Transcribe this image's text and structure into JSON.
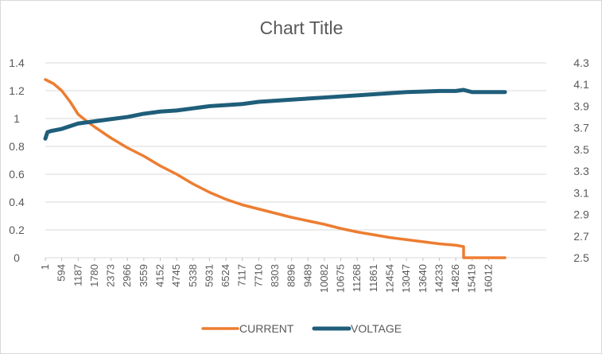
{
  "chart_data": {
    "type": "line",
    "title": "Chart Title",
    "xlabel": "",
    "ylabel": "",
    "y2label": "",
    "x_ticks": [
      "1",
      "594",
      "1187",
      "1780",
      "2373",
      "2966",
      "3559",
      "4152",
      "4745",
      "5338",
      "5931",
      "6524",
      "7117",
      "7710",
      "8303",
      "8896",
      "9489",
      "10082",
      "10675",
      "11268",
      "11861",
      "12454",
      "13047",
      "13640",
      "14233",
      "14826",
      "15419",
      "16012"
    ],
    "xlim": [
      1,
      16605
    ],
    "ylim": [
      0,
      1.4
    ],
    "y_ticks": [
      0,
      0.2,
      0.4,
      0.6,
      0.8,
      1,
      1.2,
      1.4
    ],
    "y2lim": [
      2.5,
      4.3
    ],
    "y2_ticks": [
      2.5,
      2.7,
      2.9,
      3.1,
      3.3,
      3.5,
      3.7,
      3.9,
      4.1,
      4.3
    ],
    "grid": "horizontal",
    "legend": "bottom",
    "series": [
      {
        "name": "CURRENT",
        "axis": "left",
        "color": "#ED7D31",
        "x": [
          1,
          300,
          594,
          900,
          1187,
          1500,
          1780,
          2373,
          2966,
          3559,
          4152,
          4745,
          5338,
          5931,
          6524,
          7117,
          7710,
          8303,
          8896,
          9489,
          10082,
          10675,
          11268,
          11861,
          12454,
          13047,
          13640,
          14233,
          14826,
          15110,
          15111,
          15419,
          16012,
          16605
        ],
        "y": [
          1.28,
          1.25,
          1.2,
          1.12,
          1.03,
          0.98,
          0.94,
          0.86,
          0.79,
          0.73,
          0.66,
          0.6,
          0.53,
          0.47,
          0.42,
          0.38,
          0.35,
          0.32,
          0.29,
          0.265,
          0.24,
          0.21,
          0.185,
          0.165,
          0.145,
          0.13,
          0.115,
          0.1,
          0.09,
          0.08,
          0.0,
          0.0,
          0.0,
          0.0
        ]
      },
      {
        "name": "VOLTAGE",
        "axis": "right",
        "color": "#1F5E7A",
        "x": [
          1,
          80,
          200,
          594,
          1187,
          1780,
          2373,
          2966,
          3559,
          4152,
          4745,
          5338,
          5931,
          6524,
          7117,
          7710,
          8303,
          8896,
          9489,
          10082,
          10675,
          11268,
          11861,
          12454,
          13047,
          13640,
          14233,
          14826,
          15110,
          15419,
          16012,
          16605
        ],
        "y": [
          3.6,
          3.66,
          3.67,
          3.69,
          3.74,
          3.76,
          3.78,
          3.8,
          3.83,
          3.85,
          3.86,
          3.88,
          3.9,
          3.91,
          3.92,
          3.94,
          3.95,
          3.96,
          3.97,
          3.98,
          3.99,
          4.0,
          4.01,
          4.02,
          4.03,
          4.035,
          4.04,
          4.04,
          4.05,
          4.03,
          4.03,
          4.03
        ]
      }
    ]
  }
}
